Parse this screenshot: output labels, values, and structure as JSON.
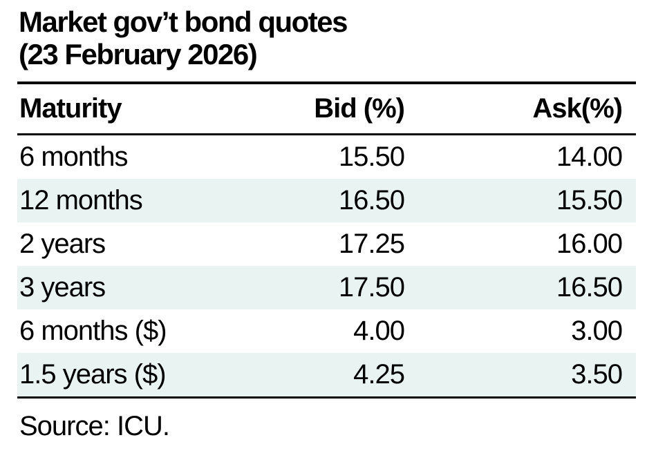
{
  "title": {
    "line1": "Market gov’t bond quotes",
    "line2": "(23 February 2026)"
  },
  "table": {
    "columns": [
      "Maturity",
      "Bid (%)",
      "Ask(%)"
    ],
    "rows": [
      {
        "maturity": "6 months",
        "bid": "15.50",
        "ask": "14.00"
      },
      {
        "maturity": "12 months",
        "bid": "16.50",
        "ask": "15.50"
      },
      {
        "maturity": "2 years",
        "bid": "17.25",
        "ask": "16.00"
      },
      {
        "maturity": "3 years",
        "bid": "17.50",
        "ask": "16.50"
      },
      {
        "maturity": "6 months ($)",
        "bid": "4.00",
        "ask": "3.00"
      },
      {
        "maturity": "1.5 years ($)",
        "bid": "4.25",
        "ask": "3.50"
      }
    ]
  },
  "source_note": "Source: ICU.",
  "colors": {
    "stripe": "#e8f3f2",
    "rule": "#000000",
    "text": "#000000",
    "background": "#ffffff"
  },
  "chart_data": {
    "type": "table",
    "title": "Market gov’t bond quotes (23 February 2026)",
    "columns": [
      "Maturity",
      "Bid (%)",
      "Ask(%)"
    ],
    "rows": [
      {
        "maturity": "6 months",
        "bid": 15.5,
        "ask": 14.0
      },
      {
        "maturity": "12 months",
        "bid": 16.5,
        "ask": 15.5
      },
      {
        "maturity": "2 years",
        "bid": 17.25,
        "ask": 16.0
      },
      {
        "maturity": "3 years",
        "bid": 17.5,
        "ask": 16.5
      },
      {
        "maturity": "6 months ($)",
        "bid": 4.0,
        "ask": 3.0
      },
      {
        "maturity": "1.5 years ($)",
        "bid": 4.25,
        "ask": 3.5
      }
    ],
    "source": "Source: ICU.",
    "layout_hints": {
      "striped_rows": [
        1,
        3,
        5
      ],
      "stripe_color": "#e8f3f2",
      "numeric_columns_right_aligned": true
    }
  }
}
